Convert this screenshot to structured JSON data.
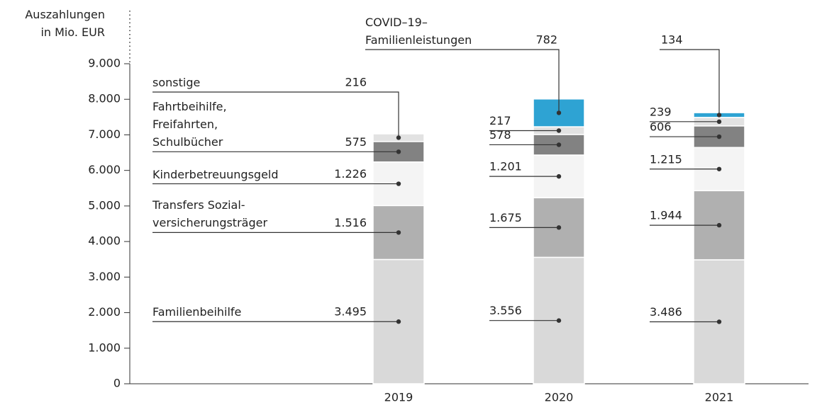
{
  "chart_data": {
    "type": "stacked_bar",
    "y_label": "Auszahlungen\nin Mio. EUR",
    "categories": [
      "2019",
      "2020",
      "2021"
    ],
    "ylim": [
      0,
      9000
    ],
    "yticks": [
      0,
      {
        "value": 1000,
        "label": "1.000"
      },
      {
        "value": 2000,
        "label": "2.000"
      },
      {
        "value": 3000,
        "label": "3.000"
      },
      {
        "value": 4000,
        "label": "4.000"
      },
      {
        "value": 5000,
        "label": "5.000"
      },
      {
        "value": 6000,
        "label": "6.000"
      },
      {
        "value": 7000,
        "label": "7.000"
      },
      {
        "value": 8000,
        "label": "8.000"
      },
      {
        "value": 9000,
        "label": "9.000"
      }
    ],
    "series": [
      {
        "name": "Familienbeihilfe",
        "color": "#d9d9d9",
        "values": [
          3495,
          3556,
          3486
        ],
        "value_labels": [
          "3.495",
          "3.556",
          "3.486"
        ]
      },
      {
        "name": "Transfers Sozial-\nversicherungsträger",
        "color": "#b0b0b0",
        "values": [
          1516,
          1675,
          1944
        ],
        "value_labels": [
          "1.516",
          "1.675",
          "1.944"
        ]
      },
      {
        "name": "Kinderbetreuungsgeld",
        "color": "#f4f4f4",
        "values": [
          1226,
          1201,
          1215
        ],
        "value_labels": [
          "1.226",
          "1.201",
          "1.215"
        ]
      },
      {
        "name": "Fahrtbeihilfe,\nFreifahrten,\nSchulbücher",
        "color": "#828282",
        "values": [
          575,
          578,
          606
        ],
        "value_labels": [
          "575",
          "578",
          "606"
        ]
      },
      {
        "name": "sonstige",
        "color": "#e2e2e2",
        "values": [
          216,
          217,
          239
        ],
        "value_labels": [
          "216",
          "217",
          "239"
        ]
      },
      {
        "name": "COVID–19–\nFamilienleistungen",
        "color": "#2ea3d3",
        "values": [
          null,
          782,
          134
        ],
        "value_labels": [
          null,
          "782",
          "134"
        ]
      }
    ]
  }
}
